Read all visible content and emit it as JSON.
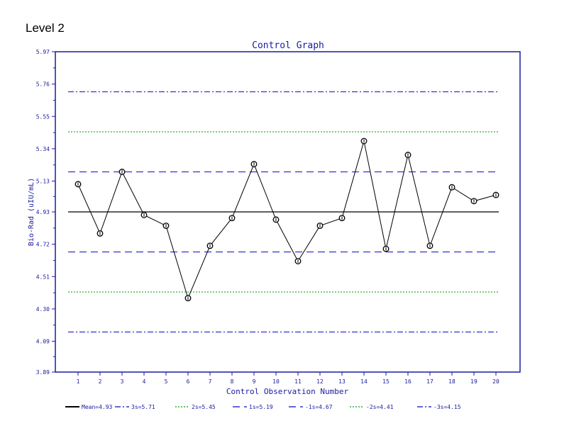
{
  "page_label": "Level 2",
  "chart_data": {
    "type": "line",
    "title": "Control Graph",
    "xlabel": "Control Observation Number",
    "ylabel": "Bio-Rad (uIU/mL)",
    "ylim": [
      3.89,
      5.97
    ],
    "yticks": [
      "3.89",
      "4.09",
      "4.30",
      "4.51",
      "4.72",
      "4.93",
      "5.13",
      "5.34",
      "5.55",
      "5.76",
      "5.97"
    ],
    "xticks": [
      "1",
      "2",
      "3",
      "4",
      "5",
      "6",
      "7",
      "8",
      "9",
      "10",
      "11",
      "12",
      "13",
      "14",
      "15",
      "16",
      "17",
      "18",
      "19",
      "20"
    ],
    "x": [
      1,
      2,
      3,
      4,
      5,
      6,
      7,
      8,
      9,
      10,
      11,
      12,
      13,
      14,
      15,
      16,
      17,
      18,
      19,
      20
    ],
    "series": [
      {
        "values": [
          5.11,
          4.79,
          5.19,
          4.91,
          4.84,
          4.37,
          4.71,
          4.89,
          5.24,
          4.88,
          4.61,
          4.84,
          4.89,
          5.39,
          4.69,
          5.3,
          4.71,
          5.09,
          5.0,
          5.04
        ]
      }
    ],
    "reference_lines": [
      {
        "label": "Mean=4.93",
        "value": 4.93,
        "color": "#000000",
        "style": "solid"
      },
      {
        "label": "3s=5.71",
        "value": 5.71,
        "color": "#3333cc",
        "style": "dashdot"
      },
      {
        "label": "2s=5.45",
        "value": 5.45,
        "color": "#33aa33",
        "style": "dotted"
      },
      {
        "label": "1s=5.19",
        "value": 5.19,
        "color": "#3333cc",
        "style": "dashed"
      },
      {
        "label": "-1s=4.67",
        "value": 4.67,
        "color": "#3333cc",
        "style": "dashed"
      },
      {
        "label": "-2s=4.41",
        "value": 4.41,
        "color": "#33aa33",
        "style": "dotted"
      },
      {
        "label": "-3s=4.15",
        "value": 4.15,
        "color": "#3333cc",
        "style": "dashdot"
      }
    ],
    "legend_position": "bottom",
    "grid": false,
    "colors": {
      "axis": "#1a1aa0",
      "title": "#1a1aa0",
      "series": "#000000"
    }
  }
}
